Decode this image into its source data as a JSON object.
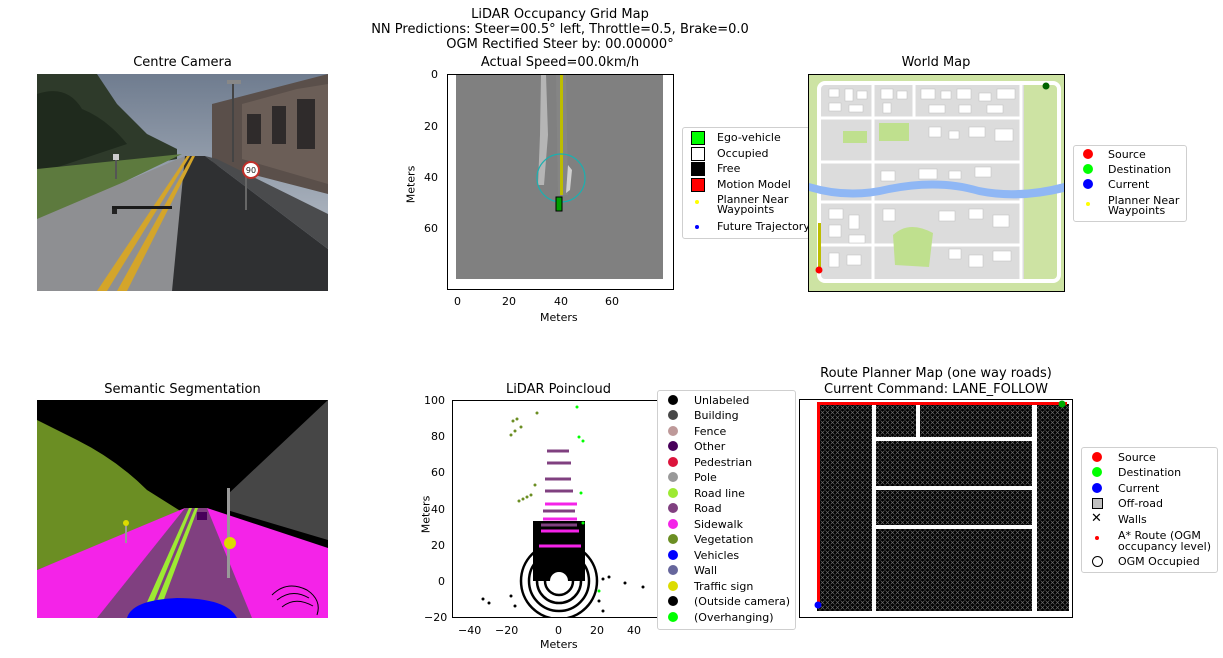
{
  "header": {
    "line1": "LiDAR Occupancy Grid Map",
    "line2": "NN Predictions: Steer=00.5° left, Throttle=0.5, Brake=0.0",
    "line3": "OGM Rectified Steer by: 00.00000°",
    "line4": "Actual Speed=00.0km/h"
  },
  "centre_camera": {
    "title": "Centre Camera",
    "sign_text": "90"
  },
  "ogm": {
    "xlabel": "Meters",
    "ylabel": "Meters",
    "xticks": [
      "0",
      "20",
      "40",
      "60"
    ],
    "yticks": [
      "0",
      "20",
      "40",
      "60"
    ],
    "legend": [
      {
        "label": "Ego-vehicle",
        "color": "#00ff00",
        "marker": "square"
      },
      {
        "label": "Occupied",
        "color": "#ffffff",
        "marker": "square"
      },
      {
        "label": "Free",
        "color": "#000000",
        "marker": "square"
      },
      {
        "label": "Motion Model",
        "color": "#ff0000",
        "marker": "square"
      },
      {
        "label": "Planner Near\nWaypoints",
        "color": "#ffff00",
        "marker": "dot"
      },
      {
        "label": "Future Trajectory",
        "color": "#0000ff",
        "marker": "dot"
      }
    ]
  },
  "world_map": {
    "title": "World Map",
    "legend": [
      {
        "label": "Source",
        "color": "#ff0000"
      },
      {
        "label": "Destination",
        "color": "#00ff00"
      },
      {
        "label": "Current",
        "color": "#0000ff"
      },
      {
        "label": "Planner Near\nWaypoints",
        "color": "#ffff00"
      }
    ]
  },
  "semantic": {
    "title": "Semantic Segmentation"
  },
  "lidar": {
    "title": "LiDAR Poincloud",
    "xlabel": "Meters",
    "ylabel": "Meters",
    "xticks": [
      "−40",
      "−20",
      "0",
      "20",
      "40"
    ],
    "yticks": [
      "100",
      "80",
      "60",
      "40",
      "20",
      "0",
      "−20"
    ],
    "legend": [
      {
        "label": "Unlabeled",
        "color": "#000000"
      },
      {
        "label": "Building",
        "color": "#464646"
      },
      {
        "label": "Fence",
        "color": "#be9999"
      },
      {
        "label": "Other",
        "color": "#48005a"
      },
      {
        "label": "Pedestrian",
        "color": "#dc143c"
      },
      {
        "label": "Pole",
        "color": "#999999"
      },
      {
        "label": "Road line",
        "color": "#9dea32"
      },
      {
        "label": "Road",
        "color": "#804080"
      },
      {
        "label": "Sidewalk",
        "color": "#f423e8"
      },
      {
        "label": "Vegetation",
        "color": "#6b8e23"
      },
      {
        "label": "Vehicles",
        "color": "#0000ff"
      },
      {
        "label": "Wall",
        "color": "#66669c"
      },
      {
        "label": "Traffic sign",
        "color": "#dcdc00"
      },
      {
        "label": "(Outside camera)",
        "color": "#000000"
      },
      {
        "label": "(Overhanging)",
        "color": "#00ff00"
      }
    ]
  },
  "route_planner": {
    "title_line1": "Route Planner Map (one way roads)",
    "title_line2": "Current Command: LANE_FOLLOW",
    "legend": [
      {
        "label": "Source",
        "color": "#ff0000",
        "marker": "dot"
      },
      {
        "label": "Destination",
        "color": "#00ff00",
        "marker": "dot"
      },
      {
        "label": "Current",
        "color": "#0000ff",
        "marker": "dot"
      },
      {
        "label": "Off-road",
        "color": "#c0c0c0",
        "marker": "square"
      },
      {
        "label": "Walls",
        "color": "#000000",
        "marker": "x"
      },
      {
        "label": "A* Route (OGM\noccupancy level)",
        "color": "#ff0000",
        "marker": "smalldot"
      },
      {
        "label": "OGM Occupied",
        "color": "#ffffff",
        "marker": "circle"
      }
    ]
  }
}
